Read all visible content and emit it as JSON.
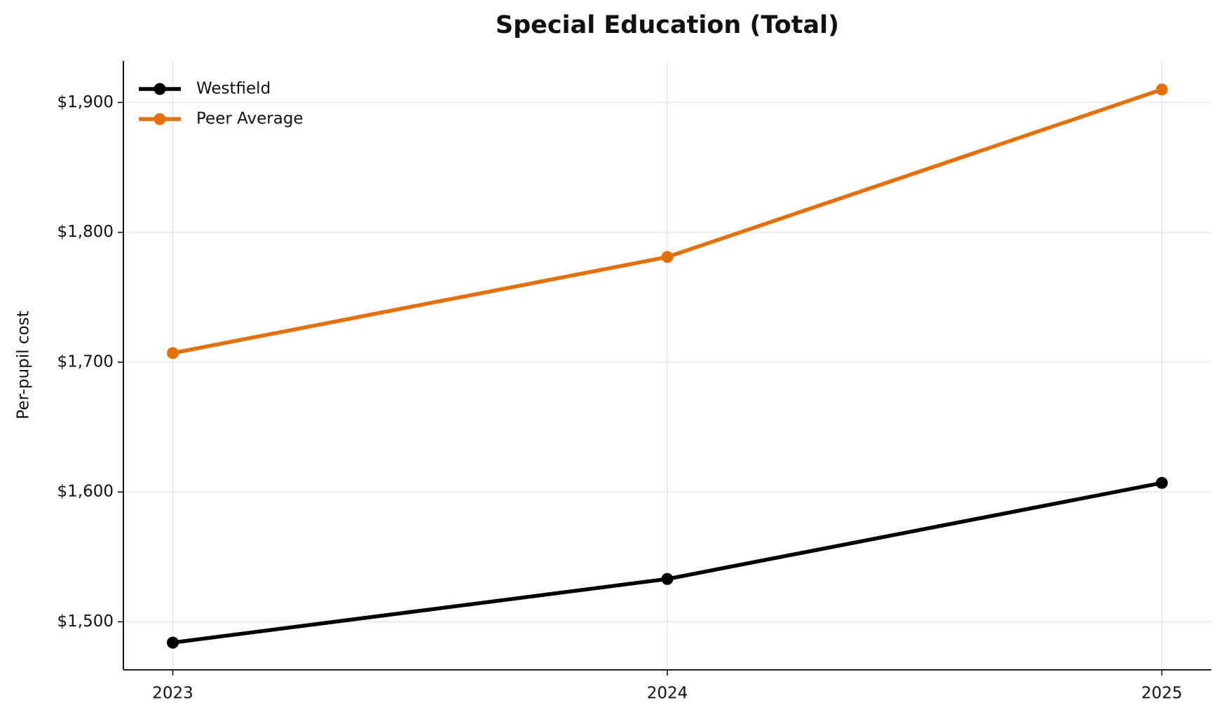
{
  "chart_data": {
    "type": "line",
    "title": "Special Education (Total)",
    "y_label": "Per-pupil cost",
    "x": [
      2023,
      2024,
      2025
    ],
    "series": [
      {
        "name": "Westfield",
        "color": "#000000",
        "values": [
          1484,
          1533,
          1607
        ]
      },
      {
        "name": "Peer Average",
        "color": "#e3700a",
        "values": [
          1707,
          1781,
          1910
        ]
      }
    ],
    "xlim": [
      2022.9,
      2025.1
    ],
    "xticks": [
      2023,
      2024,
      2025
    ],
    "ylim": [
      1463,
      1932
    ],
    "yticks": [
      {
        "value": 1500,
        "label": "$1,500"
      },
      {
        "value": 1600,
        "label": "$1,600"
      },
      {
        "value": 1700,
        "label": "$1,700"
      },
      {
        "value": 1800,
        "label": "$1,800"
      },
      {
        "value": 1900,
        "label": "$1,900"
      }
    ],
    "grid": true,
    "legend": "upper left"
  }
}
